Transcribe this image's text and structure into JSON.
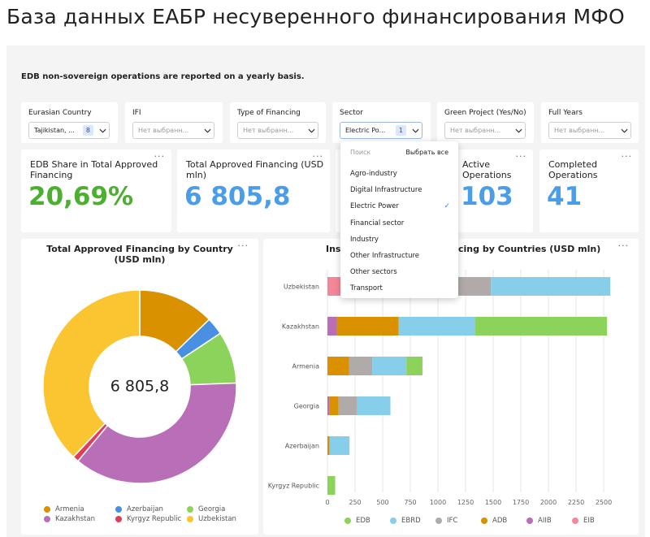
{
  "title": "База данных ЕАБР несуверенного финансирования МФО",
  "note": "EDB non-sovereign operations are reported on a yearly basis.",
  "filters": {
    "eurasian_country": {
      "label": "Eurasian Country",
      "value": "Tajikistan, ...",
      "count": "8"
    },
    "ifi": {
      "label": "IFI",
      "placeholder": "Нет выбранн..."
    },
    "type_of_financing": {
      "label": "Type of Financing",
      "placeholder": "Нет выбранн..."
    },
    "sector": {
      "label": "Sector",
      "value": "Electric Po...",
      "count": "1"
    },
    "green_project": {
      "label": "Green Project (Yes/No)",
      "placeholder": "Нет выбранн..."
    },
    "full_years": {
      "label": "Full Years",
      "placeholder": "Нет выбранн..."
    }
  },
  "kpis": {
    "edb_share": {
      "title": "EDB Share in Total Approved Financing",
      "value": "20,69%"
    },
    "total_approved": {
      "title": "Total Approved Financing (USD mln)",
      "value": "6 805,8"
    },
    "active": {
      "title": "Active Operations",
      "value": "103"
    },
    "completed": {
      "title": "Completed Operations",
      "value": "41"
    }
  },
  "more_label": "···",
  "dropdown": {
    "search_placeholder": "Поиск",
    "select_all": "Выбрать все",
    "items": [
      {
        "label": "Agro-industry",
        "checked": false
      },
      {
        "label": "Digital Infrastructure",
        "checked": false
      },
      {
        "label": "Electric Power",
        "checked": true
      },
      {
        "label": "Financial sector",
        "checked": false
      },
      {
        "label": "Industry",
        "checked": false
      },
      {
        "label": "Other Infrastructure",
        "checked": false
      },
      {
        "label": "Other sectors",
        "checked": false
      },
      {
        "label": "Transport",
        "checked": false
      }
    ]
  },
  "chart_data": [
    {
      "type": "pie",
      "title": "Total Approved Financing by Country (USD mln)",
      "center_label": "6 805,8",
      "categories": [
        "Armenia",
        "Azerbaijan",
        "Georgia",
        "Kazakhstan",
        "Kyrgyz Republic",
        "Uzbekistan"
      ],
      "values": [
        868,
        200,
        593,
        2493,
        70,
        2582
      ],
      "colors": [
        "#d99100",
        "#4a90e2",
        "#8cd35b",
        "#b86fb8",
        "#e23c5a",
        "#fbc531"
      ],
      "legend_position": "bottom"
    },
    {
      "type": "bar",
      "orientation": "horizontal",
      "stacked": true,
      "title_left": "Inst",
      "title_right": "cing by Countries (USD mln)",
      "categories": [
        "Uzbekistan",
        "Kazakhstan",
        "Armenia",
        "Georgia",
        "Azerbaijan",
        "Kyrgyz Republic"
      ],
      "series": [
        {
          "name": "EIB",
          "color": "#f4889a",
          "values": [
            120,
            0,
            0,
            0,
            0,
            0
          ]
        },
        {
          "name": "AIIB",
          "color": "#b86fb8",
          "values": [
            0,
            85,
            0,
            20,
            0,
            0
          ]
        },
        {
          "name": "ADB",
          "color": "#d99100",
          "values": [
            0,
            560,
            195,
            80,
            20,
            0
          ]
        },
        {
          "name": "IFC",
          "color": "#b0aaa8",
          "values": [
            1360,
            0,
            210,
            170,
            0,
            0
          ]
        },
        {
          "name": "EBRD",
          "color": "#87ceeb",
          "values": [
            1080,
            690,
            310,
            300,
            180,
            0
          ]
        },
        {
          "name": "EDB",
          "color": "#8cd35b",
          "values": [
            0,
            1195,
            145,
            0,
            0,
            70
          ]
        }
      ],
      "x_ticks": [
        "0",
        "250",
        "500",
        "750",
        "1000",
        "1250",
        "1500",
        "1750",
        "2000",
        "2250",
        "2500"
      ],
      "xlim": [
        0,
        2700
      ],
      "legend_order": [
        "EDB",
        "EBRD",
        "IFC",
        "ADB",
        "AIIB",
        "EIB"
      ],
      "legend_position": "bottom"
    }
  ]
}
